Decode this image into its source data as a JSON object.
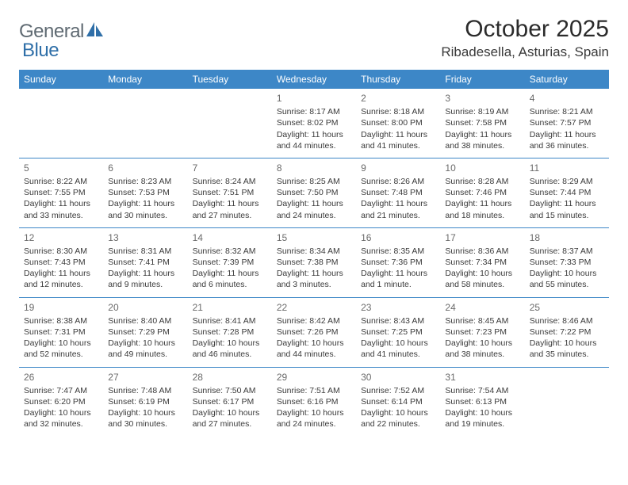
{
  "logo": {
    "text_general": "General",
    "text_blue": "Blue",
    "text_color": "#5f6a72",
    "blue_color": "#2f6fa8",
    "shape_color": "#2f6fa8"
  },
  "title": "October 2025",
  "location": "Ribadesella, Asturias, Spain",
  "header_bg": "#3d87c7",
  "header_fg": "#ffffff",
  "border_color": "#3d87c7",
  "text_color": "#3a3a3a",
  "daynum_color": "#6a6a6a",
  "cell_fontsize": 10.5,
  "weekdays": [
    "Sunday",
    "Monday",
    "Tuesday",
    "Wednesday",
    "Thursday",
    "Friday",
    "Saturday"
  ],
  "weeks": [
    [
      null,
      null,
      null,
      {
        "d": "1",
        "sr": "Sunrise: 8:17 AM",
        "ss": "Sunset: 8:02 PM",
        "dl1": "Daylight: 11 hours",
        "dl2": "and 44 minutes."
      },
      {
        "d": "2",
        "sr": "Sunrise: 8:18 AM",
        "ss": "Sunset: 8:00 PM",
        "dl1": "Daylight: 11 hours",
        "dl2": "and 41 minutes."
      },
      {
        "d": "3",
        "sr": "Sunrise: 8:19 AM",
        "ss": "Sunset: 7:58 PM",
        "dl1": "Daylight: 11 hours",
        "dl2": "and 38 minutes."
      },
      {
        "d": "4",
        "sr": "Sunrise: 8:21 AM",
        "ss": "Sunset: 7:57 PM",
        "dl1": "Daylight: 11 hours",
        "dl2": "and 36 minutes."
      }
    ],
    [
      {
        "d": "5",
        "sr": "Sunrise: 8:22 AM",
        "ss": "Sunset: 7:55 PM",
        "dl1": "Daylight: 11 hours",
        "dl2": "and 33 minutes."
      },
      {
        "d": "6",
        "sr": "Sunrise: 8:23 AM",
        "ss": "Sunset: 7:53 PM",
        "dl1": "Daylight: 11 hours",
        "dl2": "and 30 minutes."
      },
      {
        "d": "7",
        "sr": "Sunrise: 8:24 AM",
        "ss": "Sunset: 7:51 PM",
        "dl1": "Daylight: 11 hours",
        "dl2": "and 27 minutes."
      },
      {
        "d": "8",
        "sr": "Sunrise: 8:25 AM",
        "ss": "Sunset: 7:50 PM",
        "dl1": "Daylight: 11 hours",
        "dl2": "and 24 minutes."
      },
      {
        "d": "9",
        "sr": "Sunrise: 8:26 AM",
        "ss": "Sunset: 7:48 PM",
        "dl1": "Daylight: 11 hours",
        "dl2": "and 21 minutes."
      },
      {
        "d": "10",
        "sr": "Sunrise: 8:28 AM",
        "ss": "Sunset: 7:46 PM",
        "dl1": "Daylight: 11 hours",
        "dl2": "and 18 minutes."
      },
      {
        "d": "11",
        "sr": "Sunrise: 8:29 AM",
        "ss": "Sunset: 7:44 PM",
        "dl1": "Daylight: 11 hours",
        "dl2": "and 15 minutes."
      }
    ],
    [
      {
        "d": "12",
        "sr": "Sunrise: 8:30 AM",
        "ss": "Sunset: 7:43 PM",
        "dl1": "Daylight: 11 hours",
        "dl2": "and 12 minutes."
      },
      {
        "d": "13",
        "sr": "Sunrise: 8:31 AM",
        "ss": "Sunset: 7:41 PM",
        "dl1": "Daylight: 11 hours",
        "dl2": "and 9 minutes."
      },
      {
        "d": "14",
        "sr": "Sunrise: 8:32 AM",
        "ss": "Sunset: 7:39 PM",
        "dl1": "Daylight: 11 hours",
        "dl2": "and 6 minutes."
      },
      {
        "d": "15",
        "sr": "Sunrise: 8:34 AM",
        "ss": "Sunset: 7:38 PM",
        "dl1": "Daylight: 11 hours",
        "dl2": "and 3 minutes."
      },
      {
        "d": "16",
        "sr": "Sunrise: 8:35 AM",
        "ss": "Sunset: 7:36 PM",
        "dl1": "Daylight: 11 hours",
        "dl2": "and 1 minute."
      },
      {
        "d": "17",
        "sr": "Sunrise: 8:36 AM",
        "ss": "Sunset: 7:34 PM",
        "dl1": "Daylight: 10 hours",
        "dl2": "and 58 minutes."
      },
      {
        "d": "18",
        "sr": "Sunrise: 8:37 AM",
        "ss": "Sunset: 7:33 PM",
        "dl1": "Daylight: 10 hours",
        "dl2": "and 55 minutes."
      }
    ],
    [
      {
        "d": "19",
        "sr": "Sunrise: 8:38 AM",
        "ss": "Sunset: 7:31 PM",
        "dl1": "Daylight: 10 hours",
        "dl2": "and 52 minutes."
      },
      {
        "d": "20",
        "sr": "Sunrise: 8:40 AM",
        "ss": "Sunset: 7:29 PM",
        "dl1": "Daylight: 10 hours",
        "dl2": "and 49 minutes."
      },
      {
        "d": "21",
        "sr": "Sunrise: 8:41 AM",
        "ss": "Sunset: 7:28 PM",
        "dl1": "Daylight: 10 hours",
        "dl2": "and 46 minutes."
      },
      {
        "d": "22",
        "sr": "Sunrise: 8:42 AM",
        "ss": "Sunset: 7:26 PM",
        "dl1": "Daylight: 10 hours",
        "dl2": "and 44 minutes."
      },
      {
        "d": "23",
        "sr": "Sunrise: 8:43 AM",
        "ss": "Sunset: 7:25 PM",
        "dl1": "Daylight: 10 hours",
        "dl2": "and 41 minutes."
      },
      {
        "d": "24",
        "sr": "Sunrise: 8:45 AM",
        "ss": "Sunset: 7:23 PM",
        "dl1": "Daylight: 10 hours",
        "dl2": "and 38 minutes."
      },
      {
        "d": "25",
        "sr": "Sunrise: 8:46 AM",
        "ss": "Sunset: 7:22 PM",
        "dl1": "Daylight: 10 hours",
        "dl2": "and 35 minutes."
      }
    ],
    [
      {
        "d": "26",
        "sr": "Sunrise: 7:47 AM",
        "ss": "Sunset: 6:20 PM",
        "dl1": "Daylight: 10 hours",
        "dl2": "and 32 minutes."
      },
      {
        "d": "27",
        "sr": "Sunrise: 7:48 AM",
        "ss": "Sunset: 6:19 PM",
        "dl1": "Daylight: 10 hours",
        "dl2": "and 30 minutes."
      },
      {
        "d": "28",
        "sr": "Sunrise: 7:50 AM",
        "ss": "Sunset: 6:17 PM",
        "dl1": "Daylight: 10 hours",
        "dl2": "and 27 minutes."
      },
      {
        "d": "29",
        "sr": "Sunrise: 7:51 AM",
        "ss": "Sunset: 6:16 PM",
        "dl1": "Daylight: 10 hours",
        "dl2": "and 24 minutes."
      },
      {
        "d": "30",
        "sr": "Sunrise: 7:52 AM",
        "ss": "Sunset: 6:14 PM",
        "dl1": "Daylight: 10 hours",
        "dl2": "and 22 minutes."
      },
      {
        "d": "31",
        "sr": "Sunrise: 7:54 AM",
        "ss": "Sunset: 6:13 PM",
        "dl1": "Daylight: 10 hours",
        "dl2": "and 19 minutes."
      },
      null
    ]
  ]
}
